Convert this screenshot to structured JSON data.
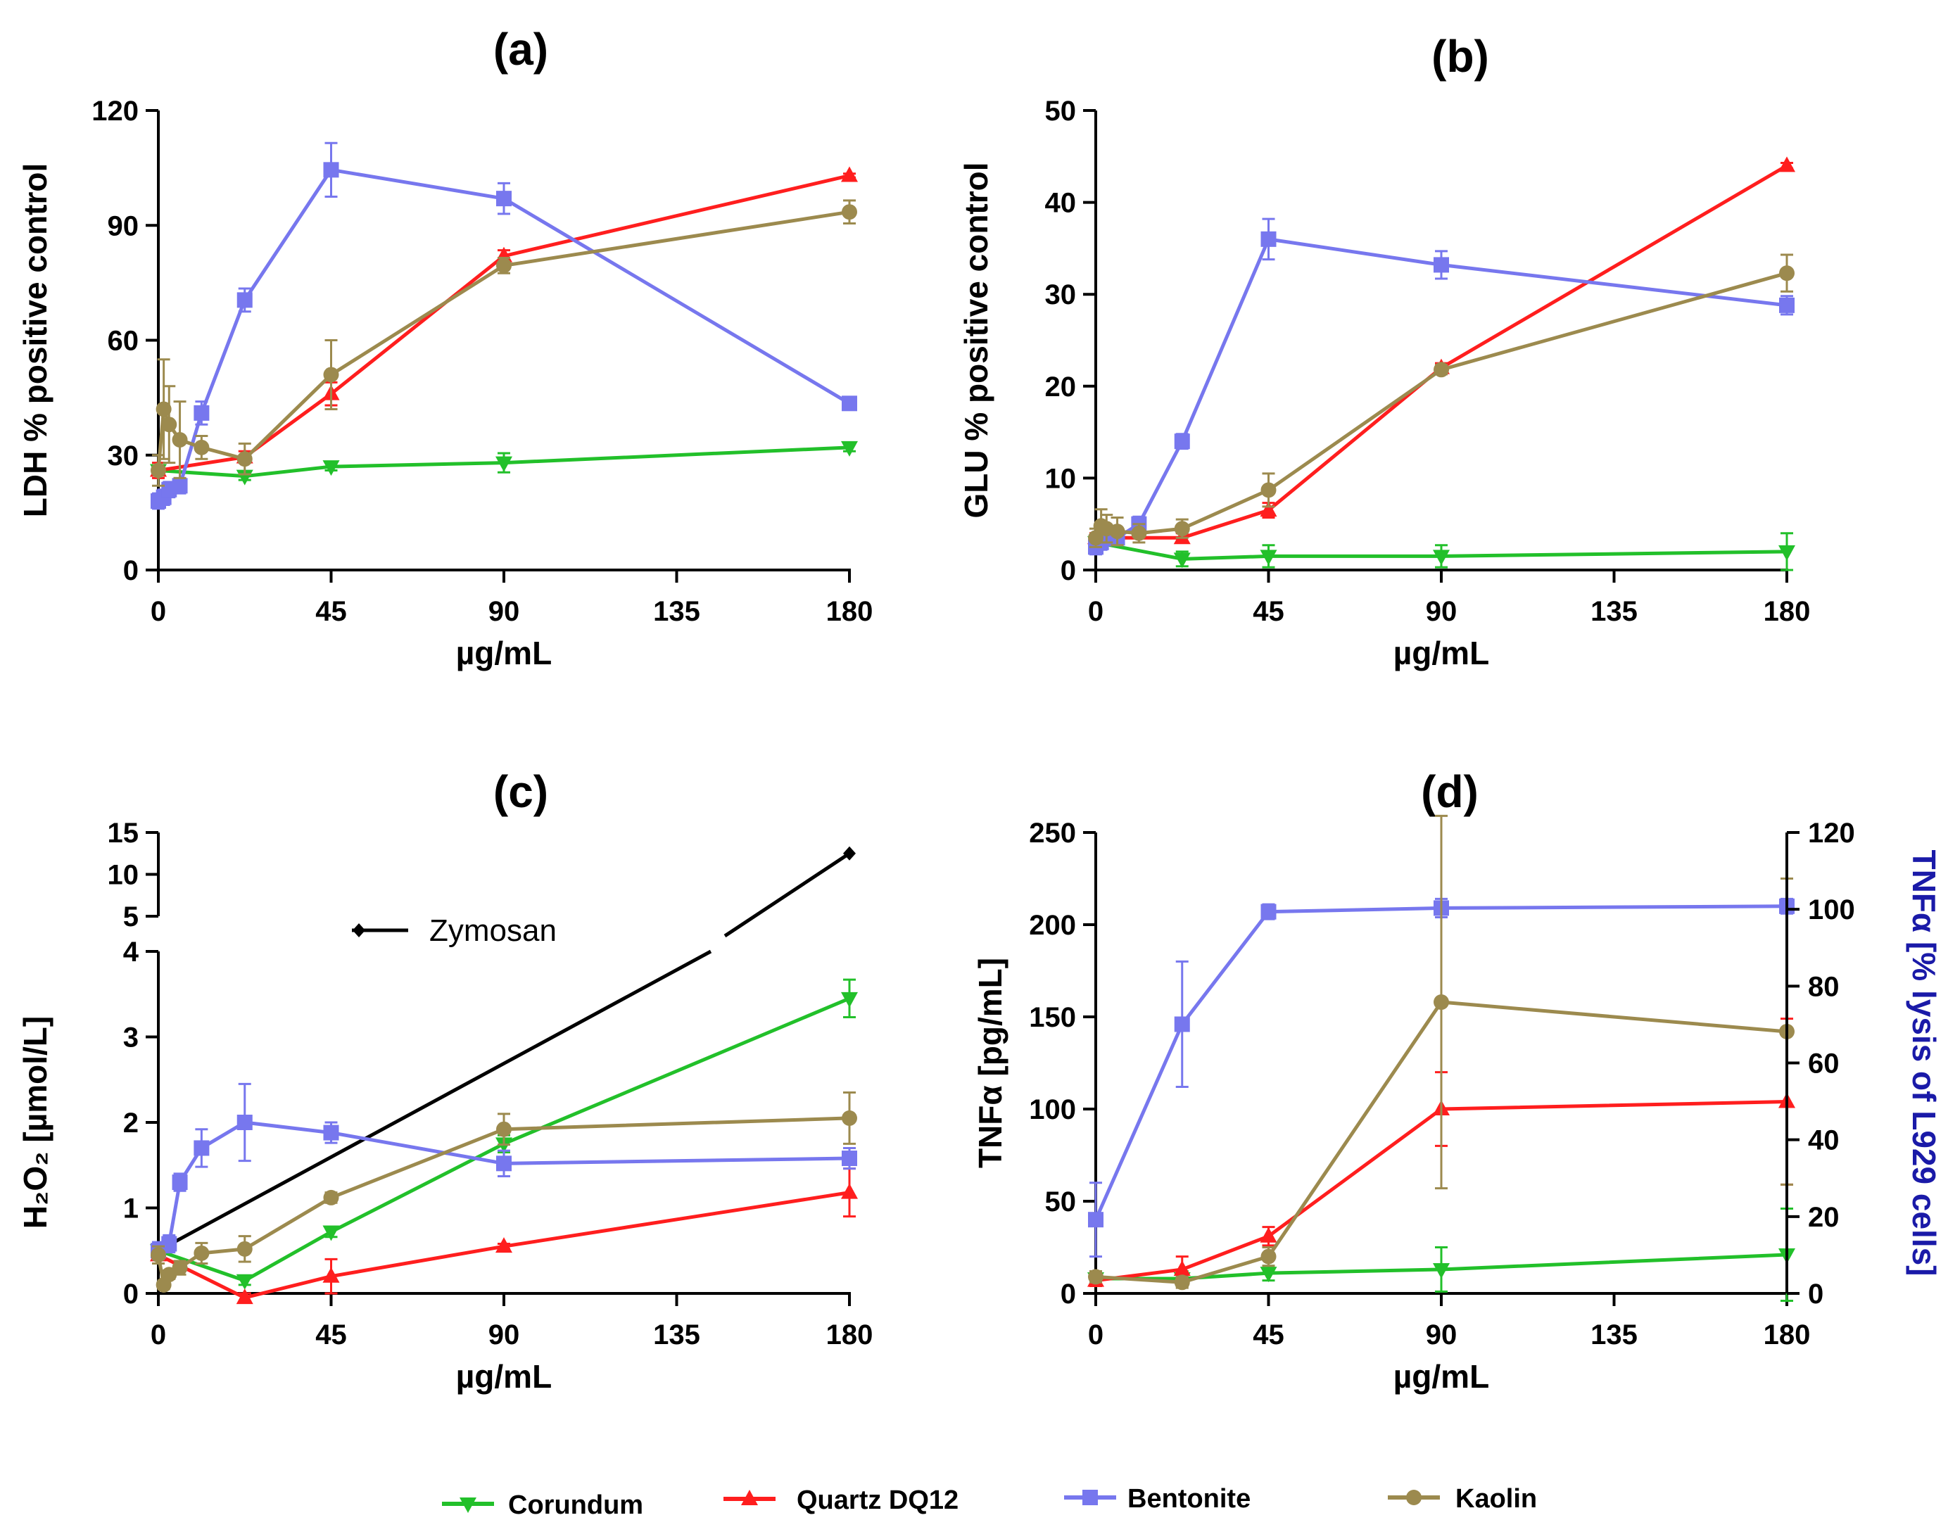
{
  "colors": {
    "Corundum": "#22c02a",
    "Quartz DQ12": "#ff1e1e",
    "Bentonite": "#7777ee",
    "Kaolin": "#9c8a4e",
    "Zymosan": "#000000",
    "right_axis": "#1a1aa8"
  },
  "legend": [
    {
      "name": "Corundum",
      "marker": "triangle-down"
    },
    {
      "name": "Quartz DQ12",
      "marker": "triangle-up"
    },
    {
      "name": "Bentonite",
      "marker": "square"
    },
    {
      "name": "Kaolin",
      "marker": "circle"
    }
  ],
  "chart_data": [
    {
      "id": "a",
      "type": "line",
      "title": "(a)",
      "xlabel": "µg/mL",
      "ylabel": "LDH % positive control",
      "xlim": [
        0,
        180
      ],
      "xticks": [
        0,
        45,
        90,
        135,
        180
      ],
      "ylim": [
        0,
        120
      ],
      "yticks": [
        0,
        30,
        60,
        90,
        120
      ],
      "series": [
        {
          "name": "Corundum",
          "marker": "triangle-down",
          "x": [
            0,
            22.5,
            45,
            90,
            180
          ],
          "y": [
            26,
            24.5,
            27,
            28,
            32
          ],
          "err": [
            1,
            1,
            1,
            2.5,
            1
          ]
        },
        {
          "name": "Quartz DQ12",
          "marker": "triangle-up",
          "x": [
            0,
            22.5,
            45,
            90,
            180
          ],
          "y": [
            26,
            29.5,
            46,
            82,
            103
          ],
          "err": [
            2,
            1.5,
            3,
            1.5,
            0.5
          ]
        },
        {
          "name": "Bentonite",
          "marker": "square",
          "x": [
            0,
            1.4,
            2.8,
            5.6,
            11.25,
            22.5,
            45,
            90,
            180
          ],
          "y": [
            18,
            19,
            21,
            22,
            41,
            70.5,
            104.5,
            97,
            43.5
          ],
          "err": [
            2,
            2,
            2,
            2,
            3,
            3,
            7,
            4,
            1
          ]
        },
        {
          "name": "Kaolin",
          "marker": "circle",
          "x": [
            0,
            1.4,
            2.8,
            5.6,
            11.25,
            22.5,
            45,
            90,
            180
          ],
          "y": [
            26,
            42,
            38,
            34,
            32,
            29,
            51,
            79.5,
            93.5
          ],
          "err": [
            4,
            13,
            10,
            10,
            3,
            4,
            9,
            2,
            3
          ]
        }
      ]
    },
    {
      "id": "b",
      "type": "line",
      "title": "(b)",
      "xlabel": "µg/mL",
      "ylabel": "GLU % positive control",
      "xlim": [
        0,
        180
      ],
      "xticks": [
        0,
        45,
        90,
        135,
        180
      ],
      "ylim": [
        0,
        50
      ],
      "yticks": [
        0,
        10,
        20,
        30,
        40,
        50
      ],
      "series": [
        {
          "name": "Corundum",
          "marker": "triangle-down",
          "x": [
            0,
            22.5,
            45,
            90,
            180
          ],
          "y": [
            3,
            1.2,
            1.5,
            1.5,
            2
          ],
          "err": [
            0.5,
            0.8,
            1.2,
            1.2,
            2
          ]
        },
        {
          "name": "Quartz DQ12",
          "marker": "triangle-up",
          "x": [
            0,
            22.5,
            45,
            90,
            180
          ],
          "y": [
            3.5,
            3.5,
            6.5,
            22,
            44
          ],
          "err": [
            0.5,
            0.5,
            0.8,
            0.5,
            0.3
          ]
        },
        {
          "name": "Bentonite",
          "marker": "square",
          "x": [
            0,
            1.4,
            2.8,
            5.6,
            11.25,
            22.5,
            45,
            90,
            180
          ],
          "y": [
            2.5,
            3,
            3.5,
            3.5,
            5,
            14,
            36,
            33.2,
            28.8
          ],
          "err": [
            0.8,
            0.8,
            0.8,
            0.8,
            0.8,
            0.8,
            2.2,
            1.5,
            1
          ]
        },
        {
          "name": "Kaolin",
          "marker": "circle",
          "x": [
            0,
            1.4,
            2.8,
            5.6,
            11.25,
            22.5,
            45,
            90,
            180
          ],
          "y": [
            3.5,
            4.8,
            4.5,
            4.2,
            4,
            4.5,
            8.7,
            21.8,
            32.3
          ],
          "err": [
            1,
            1.8,
            1.5,
            1.5,
            1,
            1,
            1.8,
            0.5,
            2
          ]
        }
      ]
    },
    {
      "id": "c",
      "type": "line",
      "title": "(c)",
      "xlabel": "µg/mL",
      "ylabel": "H₂O₂ [µmol/L]",
      "xlim": [
        0,
        180
      ],
      "xticks": [
        0,
        45,
        90,
        135,
        180
      ],
      "ylim": [
        0,
        15
      ],
      "ylim_lower": [
        0,
        4
      ],
      "ylim_upper": [
        5,
        15
      ],
      "yticks_lower": [
        0,
        1,
        2,
        3,
        4
      ],
      "yticks_upper": [
        5,
        10,
        15
      ],
      "annotation": "Zymosan",
      "series": [
        {
          "name": "Zymosan",
          "marker": "diamond",
          "x": [
            0,
            180
          ],
          "y": [
            0.5,
            12.5
          ],
          "err": [
            0,
            0
          ]
        },
        {
          "name": "Corundum",
          "marker": "triangle-down",
          "x": [
            0,
            22.5,
            45,
            90,
            180
          ],
          "y": [
            0.5,
            0.15,
            0.72,
            1.75,
            3.45
          ],
          "err": [
            0.05,
            0.05,
            0.06,
            0.1,
            0.22
          ]
        },
        {
          "name": "Quartz DQ12",
          "marker": "triangle-up",
          "x": [
            0,
            22.5,
            45,
            90,
            180
          ],
          "y": [
            0.45,
            -0.05,
            0.2,
            0.55,
            1.18
          ],
          "err": [
            0.05,
            0.05,
            0.2,
            0.03,
            0.28
          ]
        },
        {
          "name": "Bentonite",
          "marker": "square",
          "x": [
            0,
            2.8,
            5.6,
            11.25,
            22.5,
            45,
            90,
            180
          ],
          "y": [
            0.5,
            0.58,
            1.3,
            1.7,
            2,
            1.88,
            1.52,
            1.58
          ],
          "err": [
            0.1,
            0.1,
            0.1,
            0.22,
            0.45,
            0.12,
            0.15,
            0.12
          ]
        },
        {
          "name": "Kaolin",
          "marker": "circle",
          "x": [
            0,
            1.4,
            2.8,
            5.6,
            11.25,
            22.5,
            45,
            90,
            180
          ],
          "y": [
            0.45,
            0.1,
            0.22,
            0.3,
            0.47,
            0.52,
            1.12,
            1.92,
            2.05
          ],
          "err": [
            0.1,
            0.05,
            0.05,
            0.08,
            0.12,
            0.15,
            0.06,
            0.18,
            0.3
          ]
        }
      ]
    },
    {
      "id": "d",
      "type": "line",
      "title": "(d)",
      "xlabel": "µg/mL",
      "ylabel": "TNFα [pg/mL]",
      "ylabel_right": "TNFα [% lysis of L929 cells]",
      "xlim": [
        0,
        180
      ],
      "xticks": [
        0,
        45,
        90,
        135,
        180
      ],
      "ylim": [
        0,
        250
      ],
      "yticks": [
        0,
        50,
        100,
        150,
        200,
        250
      ],
      "ylim_right": [
        0,
        120
      ],
      "yticks_right": [
        0,
        20,
        40,
        60,
        80,
        100,
        120
      ],
      "series": [
        {
          "name": "Corundum",
          "marker": "triangle-down",
          "x": [
            0,
            22.5,
            45,
            90,
            180
          ],
          "y": [
            8,
            8,
            11,
            13,
            21
          ],
          "err": [
            4,
            4,
            4,
            12,
            25
          ]
        },
        {
          "name": "Quartz DQ12",
          "marker": "triangle-up",
          "x": [
            0,
            22.5,
            45,
            90,
            180
          ],
          "y": [
            7,
            13,
            31,
            100,
            104
          ],
          "err": [
            3,
            7,
            5,
            20,
            45
          ]
        },
        {
          "name": "Bentonite",
          "marker": "square",
          "x": [
            0,
            22.5,
            45,
            90,
            180
          ],
          "y": [
            40,
            146,
            207,
            209,
            210
          ],
          "err": [
            20,
            34,
            4,
            5,
            4
          ]
        },
        {
          "name": "Kaolin",
          "marker": "circle",
          "x": [
            0,
            22.5,
            45,
            90,
            180
          ],
          "y": [
            9,
            6,
            20,
            158,
            142
          ],
          "err": [
            3,
            3,
            5,
            101,
            83
          ]
        }
      ]
    }
  ]
}
